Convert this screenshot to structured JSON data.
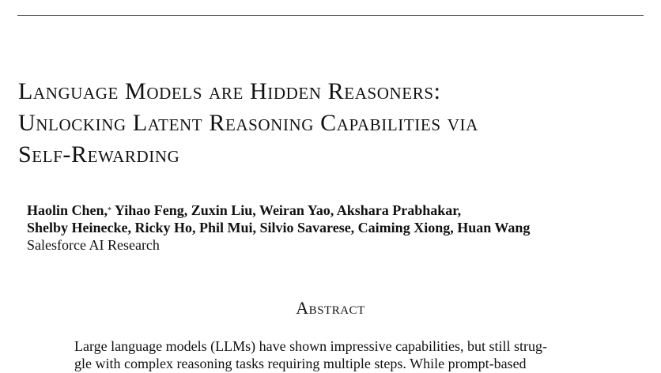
{
  "paper": {
    "title_lines": [
      "Language Models are Hidden Reasoners:",
      "Unlocking Latent Reasoning Capabilities via",
      "Self-Rewarding"
    ],
    "authors": {
      "line1_first": "Haolin Chen,",
      "line1_mark": "*",
      "line1_rest": "Yihao Feng, Zuxin Liu, Weiran Yao, Akshara Prabhakar,",
      "line2": "Shelby Heinecke, Ricky Ho, Phil Mui, Silvio Savarese, Caiming Xiong, Huan Wang"
    },
    "affiliation": "Salesforce AI Research",
    "abstract": {
      "heading": "Abstract",
      "lines": [
        "Large language models (LLMs) have shown impressive capabilities, but still strug-",
        "gle with complex reasoning tasks requiring multiple steps. While prompt-based"
      ]
    }
  }
}
